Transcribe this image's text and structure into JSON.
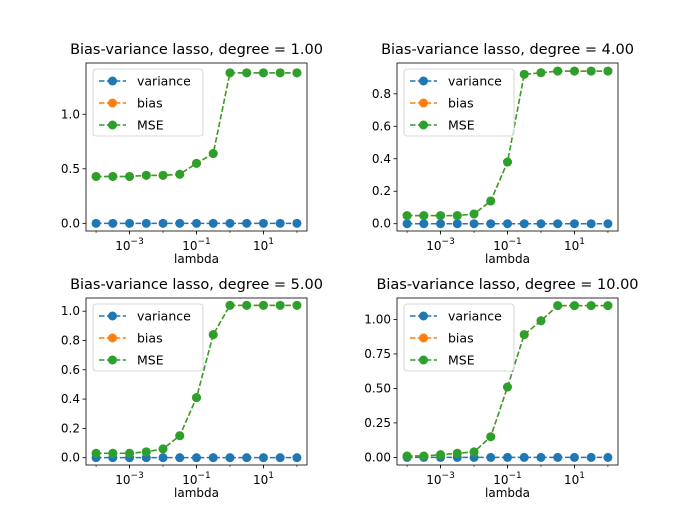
{
  "chart_data": [
    {
      "type": "line",
      "title": "Bias-variance lasso, degree = 1.00",
      "xlabel": "lambda",
      "ylabel": "",
      "xscale": "log",
      "x": [
        0.0001,
        0.000316,
        0.001,
        0.00316,
        0.01,
        0.0316,
        0.1,
        0.316,
        1,
        3.16,
        10,
        31.6,
        100
      ],
      "xlim": [
        5e-05,
        200
      ],
      "ylim": [
        -0.07,
        1.47
      ],
      "yticks": [
        0.0,
        0.5,
        1.0
      ],
      "ytick_labels": [
        "0.0",
        "0.5",
        "1.0"
      ],
      "xticks": [
        0.001,
        0.1,
        10
      ],
      "xtick_labels": [
        "10−3",
        "10−1",
        "101"
      ],
      "legend_position": "top-left",
      "series": [
        {
          "name": "variance",
          "color": "#1f77b4",
          "values": [
            0,
            0,
            0,
            0,
            0,
            0,
            0,
            0,
            0,
            0,
            0,
            0,
            0
          ]
        },
        {
          "name": "bias",
          "color": "#ff7f0e",
          "values": [
            0.43,
            0.43,
            0.43,
            0.44,
            0.44,
            0.45,
            0.55,
            0.64,
            1.38,
            1.38,
            1.38,
            1.38,
            1.38
          ]
        },
        {
          "name": "MSE",
          "color": "#2ca02c",
          "values": [
            0.43,
            0.43,
            0.43,
            0.44,
            0.44,
            0.45,
            0.55,
            0.64,
            1.38,
            1.38,
            1.38,
            1.38,
            1.38
          ]
        }
      ]
    },
    {
      "type": "line",
      "title": "Bias-variance lasso, degree = 4.00",
      "xlabel": "lambda",
      "ylabel": "",
      "xscale": "log",
      "x": [
        0.0001,
        0.000316,
        0.001,
        0.00316,
        0.01,
        0.0316,
        0.1,
        0.316,
        1,
        3.16,
        10,
        31.6,
        100
      ],
      "xlim": [
        5e-05,
        200
      ],
      "ylim": [
        -0.045,
        0.99
      ],
      "yticks": [
        0.0,
        0.2,
        0.4,
        0.6,
        0.8
      ],
      "ytick_labels": [
        "0.0",
        "0.2",
        "0.4",
        "0.6",
        "0.8"
      ],
      "xticks": [
        0.001,
        0.1,
        10
      ],
      "xtick_labels": [
        "10−3",
        "10−1",
        "101"
      ],
      "legend_position": "top-left",
      "series": [
        {
          "name": "variance",
          "color": "#1f77b4",
          "values": [
            0,
            0,
            0,
            0,
            0,
            0,
            0,
            0,
            0,
            0,
            0,
            0,
            0
          ]
        },
        {
          "name": "bias",
          "color": "#ff7f0e",
          "values": [
            0.05,
            0.05,
            0.05,
            0.05,
            0.06,
            0.14,
            0.38,
            0.92,
            0.93,
            0.94,
            0.94,
            0.94,
            0.94
          ]
        },
        {
          "name": "MSE",
          "color": "#2ca02c",
          "values": [
            0.05,
            0.05,
            0.05,
            0.05,
            0.06,
            0.14,
            0.38,
            0.92,
            0.93,
            0.94,
            0.94,
            0.94,
            0.94
          ]
        }
      ]
    },
    {
      "type": "line",
      "title": "Bias-variance lasso, degree = 5.00",
      "xlabel": "lambda",
      "ylabel": "",
      "xscale": "log",
      "x": [
        0.0001,
        0.000316,
        0.001,
        0.00316,
        0.01,
        0.0316,
        0.1,
        0.316,
        1,
        3.16,
        10,
        31.6,
        100
      ],
      "xlim": [
        5e-05,
        200
      ],
      "ylim": [
        -0.05,
        1.09
      ],
      "yticks": [
        0.0,
        0.2,
        0.4,
        0.6,
        0.8,
        1.0
      ],
      "ytick_labels": [
        "0.0",
        "0.2",
        "0.4",
        "0.6",
        "0.8",
        "1.0"
      ],
      "xticks": [
        0.001,
        0.1,
        10
      ],
      "xtick_labels": [
        "10−3",
        "10−1",
        "101"
      ],
      "legend_position": "top-left",
      "series": [
        {
          "name": "variance",
          "color": "#1f77b4",
          "values": [
            0,
            0,
            0,
            0,
            0,
            0,
            0,
            0,
            0,
            0,
            0,
            0,
            0
          ]
        },
        {
          "name": "bias",
          "color": "#ff7f0e",
          "values": [
            0.03,
            0.03,
            0.03,
            0.04,
            0.06,
            0.15,
            0.41,
            0.84,
            1.04,
            1.04,
            1.04,
            1.04,
            1.04
          ]
        },
        {
          "name": "MSE",
          "color": "#2ca02c",
          "values": [
            0.03,
            0.03,
            0.03,
            0.04,
            0.06,
            0.15,
            0.41,
            0.84,
            1.04,
            1.04,
            1.04,
            1.04,
            1.04
          ]
        }
      ]
    },
    {
      "type": "line",
      "title": "Bias-variance lasso, degree = 10.00",
      "xlabel": "lambda",
      "ylabel": "",
      "xscale": "log",
      "x": [
        0.0001,
        0.000316,
        0.001,
        0.00316,
        0.01,
        0.0316,
        0.1,
        0.316,
        1,
        3.16,
        10,
        31.6,
        100
      ],
      "xlim": [
        5e-05,
        200
      ],
      "ylim": [
        -0.055,
        1.155
      ],
      "yticks": [
        0.0,
        0.25,
        0.5,
        0.75,
        1.0
      ],
      "ytick_labels": [
        "0.00",
        "0.25",
        "0.50",
        "0.75",
        "1.00"
      ],
      "xticks": [
        0.001,
        0.1,
        10
      ],
      "xtick_labels": [
        "10−3",
        "10−1",
        "101"
      ],
      "legend_position": "top-left",
      "series": [
        {
          "name": "variance",
          "color": "#1f77b4",
          "values": [
            0,
            0,
            0,
            0,
            0,
            0,
            0,
            0,
            0,
            0,
            0,
            0,
            0
          ]
        },
        {
          "name": "bias",
          "color": "#ff7f0e",
          "values": [
            0.01,
            0.01,
            0.02,
            0.03,
            0.04,
            0.15,
            0.51,
            0.89,
            0.99,
            1.1,
            1.1,
            1.1,
            1.1
          ]
        },
        {
          "name": "MSE",
          "color": "#2ca02c",
          "values": [
            0.01,
            0.01,
            0.02,
            0.03,
            0.04,
            0.15,
            0.51,
            0.89,
            0.99,
            1.1,
            1.1,
            1.1,
            1.1
          ]
        }
      ]
    }
  ]
}
